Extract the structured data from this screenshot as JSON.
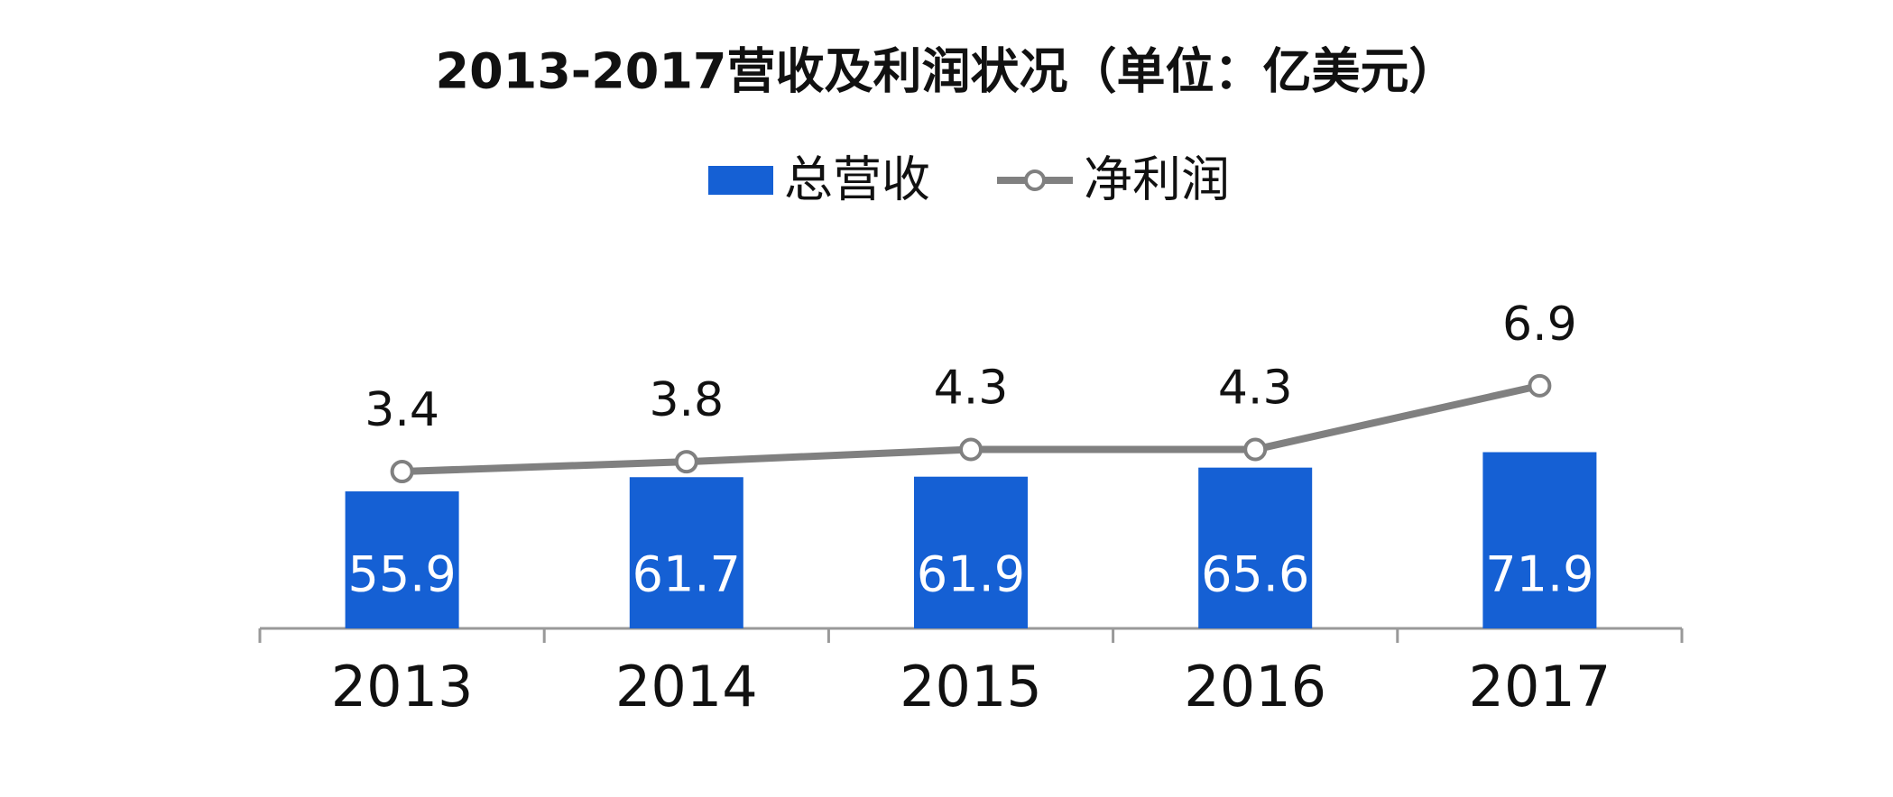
{
  "chart_data": {
    "type": "bar_line",
    "title": "2013-2017营收及利润状况（单位：亿美元）",
    "categories": [
      "2013",
      "2014",
      "2015",
      "2016",
      "2017"
    ],
    "series": [
      {
        "name": "总营收",
        "type": "bar",
        "color": "#1560d4",
        "values": [
          55.9,
          61.7,
          61.9,
          65.6,
          71.9
        ]
      },
      {
        "name": "净利润",
        "type": "line",
        "axis": "y2",
        "color": "#808080",
        "values": [
          3.4,
          3.8,
          4.3,
          4.3,
          6.9
        ]
      }
    ],
    "ylim": [
      0,
      160
    ],
    "y2lim": [
      -3,
      13
    ],
    "legend": "top"
  }
}
